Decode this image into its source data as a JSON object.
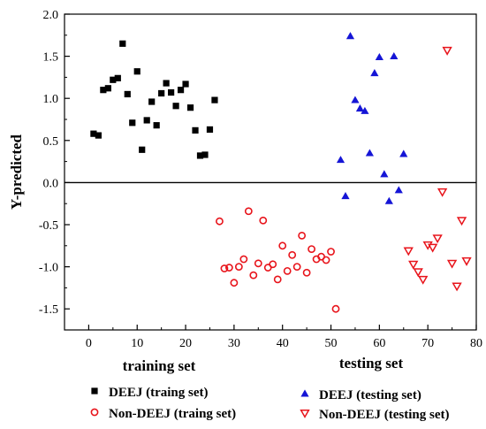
{
  "chart_data": {
    "type": "scatter",
    "ylabel": "Y-predicted",
    "xlabel_left": "training set",
    "xlabel_right": "testing set",
    "xlim": [
      -5,
      80
    ],
    "ylim": [
      -1.75,
      2.0
    ],
    "x_ticks": [
      "0",
      "10",
      "20",
      "30",
      "40",
      "50",
      "60",
      "70",
      "80"
    ],
    "y_ticks": [
      "2.0",
      "1.5",
      "1.0",
      "0.5",
      "0.0",
      "-0.5",
      "-1.0",
      "-1.5"
    ],
    "reference_line_y": 0,
    "series": [
      {
        "name": "DEEJ (traing set)",
        "marker": "square",
        "color": "#000000",
        "points": [
          [
            1,
            0.58
          ],
          [
            2,
            0.56
          ],
          [
            3,
            1.1
          ],
          [
            4,
            1.12
          ],
          [
            5,
            1.22
          ],
          [
            6,
            1.24
          ],
          [
            7,
            1.65
          ],
          [
            8,
            1.05
          ],
          [
            9,
            0.71
          ],
          [
            10,
            1.32
          ],
          [
            11,
            0.39
          ],
          [
            12,
            0.74
          ],
          [
            13,
            0.96
          ],
          [
            14,
            0.68
          ],
          [
            15,
            1.06
          ],
          [
            16,
            1.18
          ],
          [
            17,
            1.07
          ],
          [
            18,
            0.91
          ],
          [
            19,
            1.1
          ],
          [
            20,
            1.17
          ],
          [
            21,
            0.89
          ],
          [
            22,
            0.62
          ],
          [
            23,
            0.32
          ],
          [
            24,
            0.33
          ],
          [
            25,
            0.63
          ],
          [
            26,
            0.98
          ]
        ]
      },
      {
        "name": "Non-DEEJ (traing set)",
        "marker": "circle",
        "color": "#e8141b",
        "points": [
          [
            27,
            -0.46
          ],
          [
            28,
            -1.02
          ],
          [
            29,
            -1.01
          ],
          [
            30,
            -1.19
          ],
          [
            31,
            -1.0
          ],
          [
            32,
            -0.91
          ],
          [
            33,
            -0.34
          ],
          [
            34,
            -1.1
          ],
          [
            35,
            -0.96
          ],
          [
            36,
            -0.45
          ],
          [
            37,
            -1.01
          ],
          [
            38,
            -0.97
          ],
          [
            39,
            -1.15
          ],
          [
            40,
            -0.75
          ],
          [
            41,
            -1.05
          ],
          [
            42,
            -0.86
          ],
          [
            43,
            -1.0
          ],
          [
            44,
            -0.63
          ],
          [
            45,
            -1.07
          ],
          [
            46,
            -0.79
          ],
          [
            47,
            -0.91
          ],
          [
            48,
            -0.88
          ],
          [
            49,
            -0.92
          ],
          [
            50,
            -0.82
          ],
          [
            51,
            -1.5
          ]
        ]
      },
      {
        "name": "DEEJ (testing set)",
        "marker": "triangle-up",
        "color": "#1515d6",
        "points": [
          [
            52,
            0.27
          ],
          [
            53,
            -0.16
          ],
          [
            54,
            1.74
          ],
          [
            55,
            0.98
          ],
          [
            56,
            0.88
          ],
          [
            57,
            0.85
          ],
          [
            58,
            0.35
          ],
          [
            59,
            1.3
          ],
          [
            60,
            1.49
          ],
          [
            61,
            0.1
          ],
          [
            62,
            -0.22
          ],
          [
            63,
            1.5
          ],
          [
            64,
            -0.09
          ],
          [
            65,
            0.34
          ]
        ]
      },
      {
        "name": "Non-DEEJ (testing set)",
        "marker": "triangle-down",
        "color": "#e8141b",
        "points": [
          [
            66,
            -0.81
          ],
          [
            67,
            -0.97
          ],
          [
            68,
            -1.06
          ],
          [
            69,
            -1.15
          ],
          [
            70,
            -0.74
          ],
          [
            71,
            -0.77
          ],
          [
            72,
            -0.66
          ],
          [
            73,
            -0.11
          ],
          [
            74,
            1.57
          ],
          [
            75,
            -0.96
          ],
          [
            76,
            -1.23
          ],
          [
            77,
            -0.45
          ],
          [
            78,
            -0.93
          ]
        ]
      }
    ]
  }
}
